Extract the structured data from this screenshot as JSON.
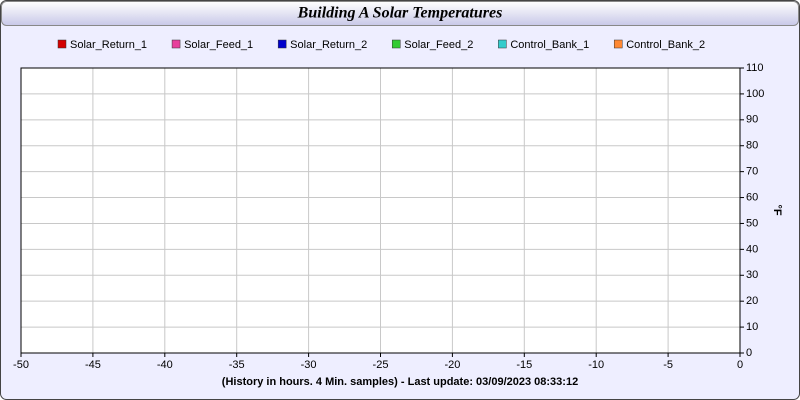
{
  "chart_data": {
    "type": "line",
    "title": "Building A Solar Temperatures",
    "x_label": "(History in hours. 4 Min. samples) - Last update: 03/09/2023 08:33:12",
    "y_label": "°F",
    "x": [],
    "series": [
      {
        "name": "Solar_Return_1",
        "color": "#d40000",
        "values": []
      },
      {
        "name": "Solar_Feed_1",
        "color": "#e8409c",
        "values": []
      },
      {
        "name": "Solar_Return_2",
        "color": "#0000cc",
        "values": []
      },
      {
        "name": "Solar_Feed_2",
        "color": "#33cc33",
        "values": []
      },
      {
        "name": "Control_Bank_1",
        "color": "#33cccc",
        "values": []
      },
      {
        "name": "Control_Bank_2",
        "color": "#ff8833",
        "values": []
      }
    ],
    "xlim": [
      -50,
      0
    ],
    "xticks": [
      -50,
      -45,
      -40,
      -35,
      -30,
      -25,
      -20,
      -15,
      -10,
      -5,
      0
    ],
    "ylim": [
      0,
      110
    ],
    "yticks": [
      0,
      10,
      20,
      30,
      40,
      50,
      60,
      70,
      80,
      90,
      100,
      110
    ],
    "grid": true
  }
}
